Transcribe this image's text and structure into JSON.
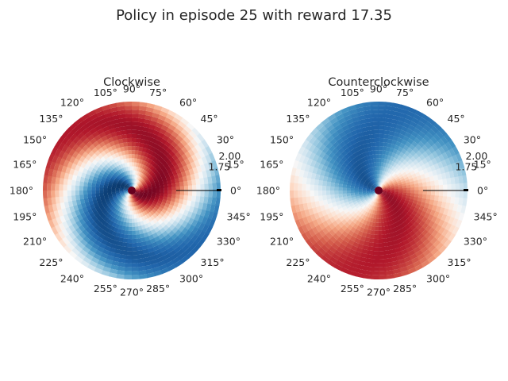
{
  "figure": {
    "title": "Policy in episode 25 with reward 17.35"
  },
  "colors": {
    "cmap_low": "#053061",
    "cmap_mid": "#f7f7f7",
    "cmap_high": "#67001f",
    "text": "#262626",
    "line": "#000000",
    "center_marker": "#67001f"
  },
  "chart_data": [
    {
      "type": "heatmap",
      "projection": "polar",
      "title": "Clockwise",
      "colormap": "RdBu_r",
      "theta_ticks_deg": [
        0,
        15,
        30,
        45,
        60,
        75,
        90,
        105,
        120,
        135,
        150,
        165,
        180,
        195,
        210,
        225,
        240,
        255,
        270,
        285,
        300,
        315,
        330,
        345
      ],
      "theta_tick_labels": [
        "0°",
        "15°",
        "30°",
        "45°",
        "60°",
        "75°",
        "90°",
        "105°",
        "120°",
        "135°",
        "150°",
        "165°",
        "180°",
        "195°",
        "210°",
        "225°",
        "240°",
        "255°",
        "270°",
        "285°",
        "300°",
        "315°",
        "330°",
        "345°"
      ],
      "r_tick_values": [
        1.75,
        2.0
      ],
      "r_tick_labels": [
        "1.75",
        "2.00"
      ],
      "rlim": [
        0,
        2.0
      ],
      "value_range": [
        -1,
        1
      ],
      "pattern": {
        "angle_peak_deg": 312,
        "spiral_deg_per_unit_r": 95,
        "amplitude_inner": 1.0,
        "amplitude_outer": 0.8
      },
      "pendulum_line": {
        "angle_deg": 0,
        "r_from": 1.0,
        "r_to": 2.0
      },
      "center_marker": true
    },
    {
      "type": "heatmap",
      "projection": "polar",
      "title": "Counterclockwise",
      "colormap": "RdBu_r",
      "theta_ticks_deg": [
        0,
        15,
        30,
        45,
        60,
        75,
        90,
        105,
        120,
        135,
        150,
        165,
        180,
        195,
        210,
        225,
        240,
        255,
        270,
        285,
        300,
        315,
        330,
        345
      ],
      "theta_tick_labels": [
        "0°",
        "15°",
        "30°",
        "45°",
        "60°",
        "75°",
        "90°",
        "105°",
        "120°",
        "135°",
        "150°",
        "165°",
        "180°",
        "195°",
        "210°",
        "225°",
        "240°",
        "255°",
        "270°",
        "285°",
        "300°",
        "315°",
        "330°",
        "345°"
      ],
      "r_tick_values": [
        1.75,
        2.0
      ],
      "r_tick_labels": [
        "1.75",
        "2.00"
      ],
      "rlim": [
        0,
        2.0
      ],
      "value_range": [
        -1,
        1
      ],
      "pattern": {
        "angle_peak_deg": -20,
        "spiral_deg_per_unit_r": -45,
        "amplitude_inner": 0.9,
        "amplitude_outer": 0.78
      },
      "pendulum_line": {
        "angle_deg": 0,
        "r_from": 1.0,
        "r_to": 2.0
      },
      "center_marker": true
    }
  ]
}
